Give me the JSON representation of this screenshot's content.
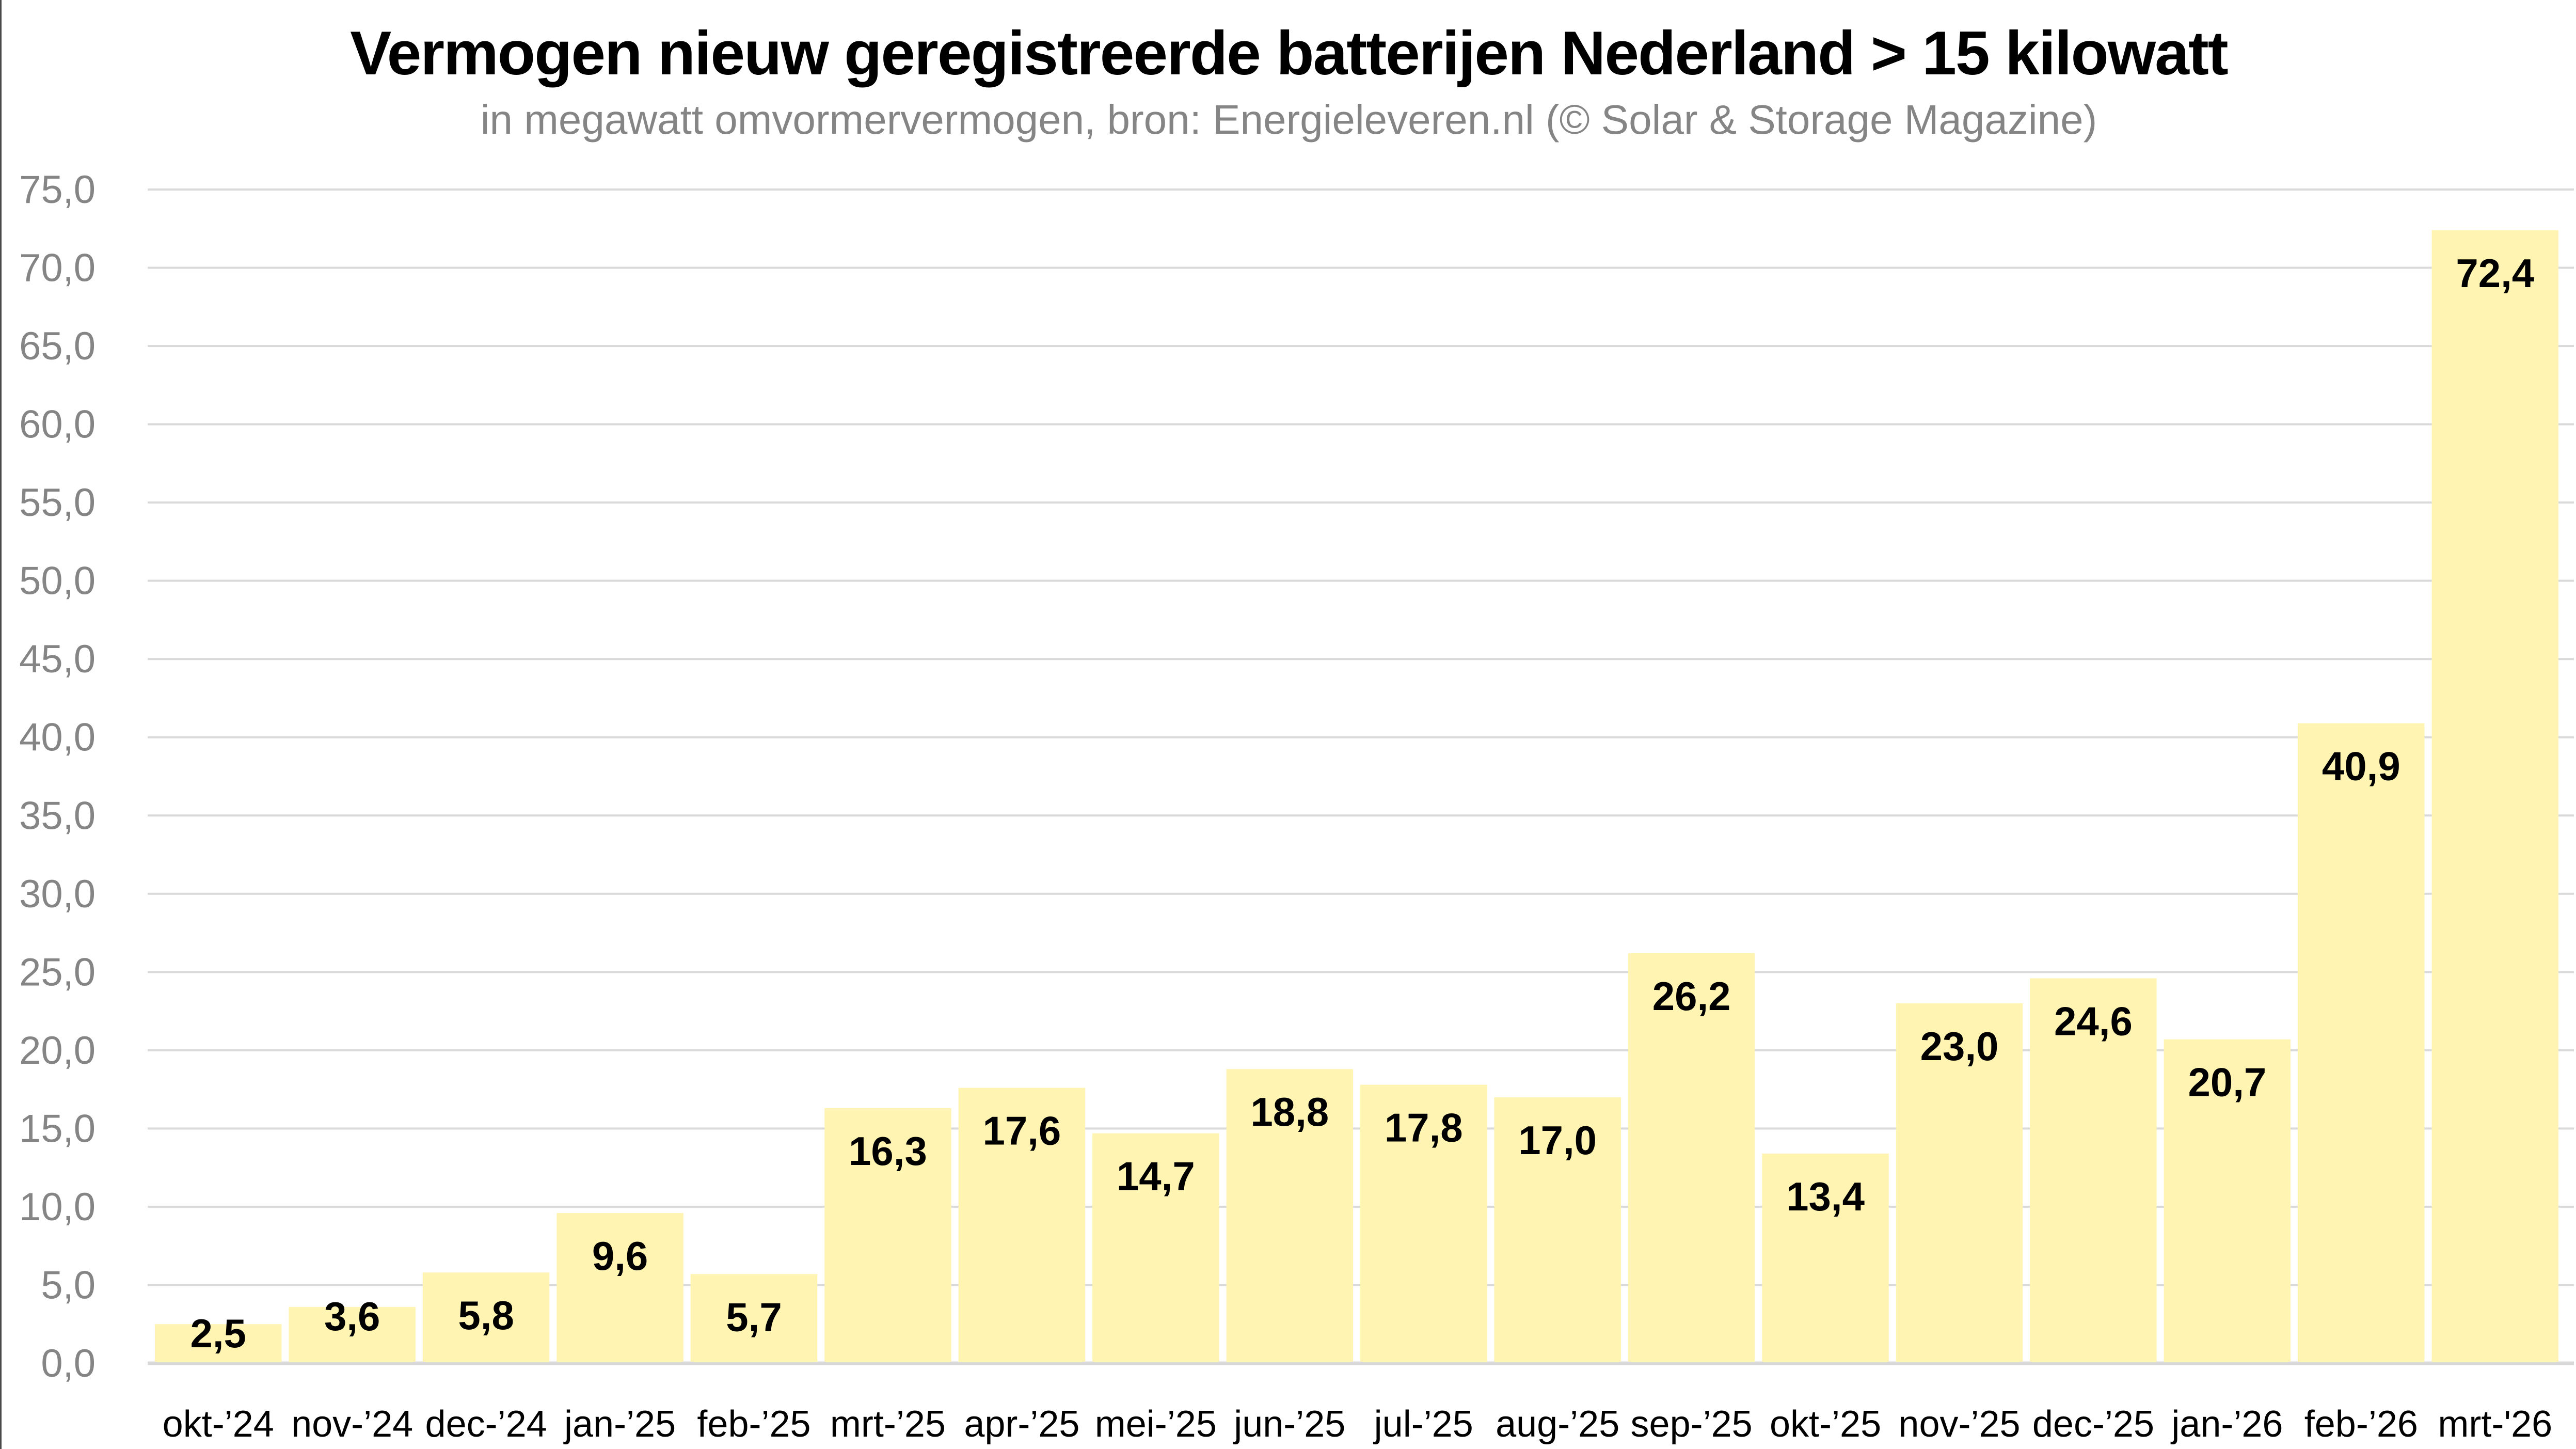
{
  "chart_data": {
    "type": "bar",
    "title": "Vermogen nieuw geregistreerde batterijen Nederland > 15 kilowatt",
    "subtitle": "in megawatt omvormervermogen, bron: Energieleveren.nl (© Solar & Storage Magazine)",
    "xlabel": "",
    "ylabel": "",
    "ylim": [
      0,
      75
    ],
    "yticks": [
      0,
      5,
      10,
      15,
      20,
      25,
      30,
      35,
      40,
      45,
      50,
      55,
      60,
      65,
      70,
      75
    ],
    "ytick_labels": [
      "0,0",
      "5,0",
      "10,0",
      "15,0",
      "20,0",
      "25,0",
      "30,0",
      "35,0",
      "40,0",
      "45,0",
      "50,0",
      "55,0",
      "60,0",
      "65,0",
      "70,0",
      "75,0"
    ],
    "grid": true,
    "legend": "none",
    "bar_color": "#FFF4B2",
    "grid_color": "#D9D9D9",
    "categories": [
      "okt-’24",
      "nov-’24",
      "dec-’24",
      "jan-’25",
      "feb-’25",
      "mrt-’25",
      "apr-’25",
      "mei-’25",
      "jun-’25",
      "jul-’25",
      "aug-’25",
      "sep-’25",
      "okt-’25",
      "nov-’25",
      "dec-’25",
      "jan-’26",
      "feb-’26",
      "mrt-'26"
    ],
    "values": [
      2.5,
      3.6,
      5.8,
      9.6,
      5.7,
      16.3,
      17.6,
      14.7,
      18.8,
      17.8,
      17.0,
      26.2,
      13.4,
      23.0,
      24.6,
      20.7,
      40.9,
      72.4
    ],
    "data_labels": [
      "2,5",
      "3,6",
      "5,8",
      "9,6",
      "5,7",
      "16,3",
      "17,6",
      "14,7",
      "18,8",
      "17,8",
      "17,0",
      "26,2",
      "13,4",
      "23,0",
      "24,6",
      "20,7",
      "40,9",
      "72,4"
    ]
  }
}
